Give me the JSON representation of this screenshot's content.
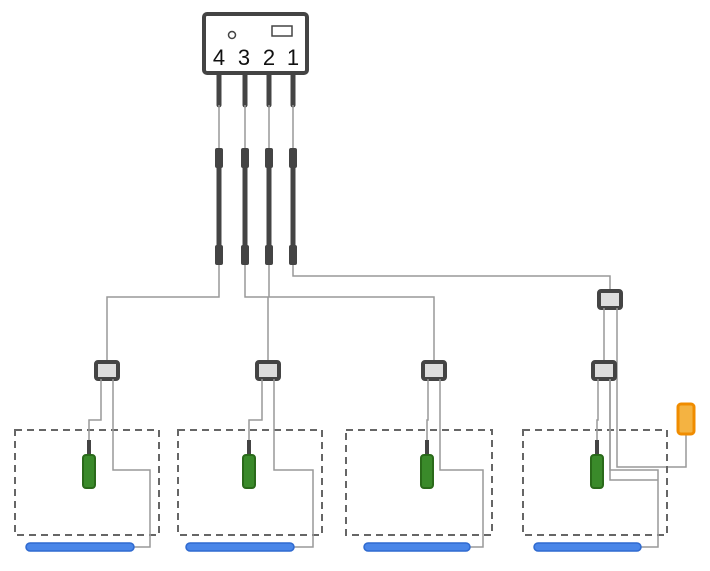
{
  "hub": {
    "ports": [
      "4",
      "3",
      "2",
      "1"
    ]
  }
}
